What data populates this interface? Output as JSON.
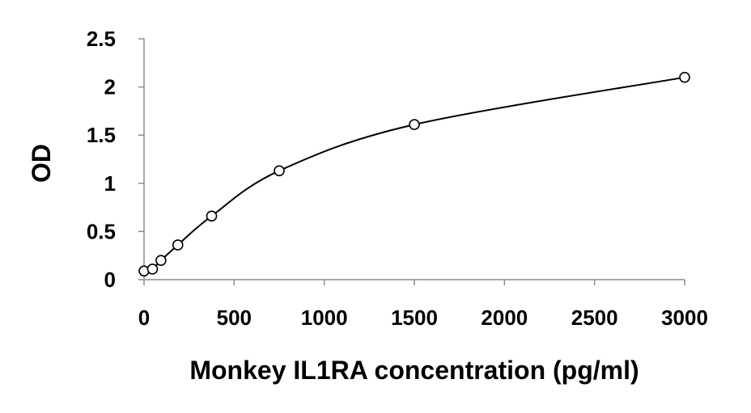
{
  "chart_data": {
    "type": "scatter",
    "title": "",
    "xlabel": "Monkey IL1RA concentration (pg/ml)",
    "ylabel": "OD",
    "xlim": [
      0,
      3000
    ],
    "ylim": [
      0,
      2.5
    ],
    "xticks": [
      0,
      500,
      1000,
      1500,
      2000,
      2500,
      3000
    ],
    "yticks": [
      0,
      0.5,
      1,
      1.5,
      2,
      2.5
    ],
    "xtick_labels": [
      "0",
      "500",
      "1000",
      "1500",
      "2000",
      "2500",
      "3000"
    ],
    "ytick_labels": [
      "0",
      "0.5",
      "1",
      "1.5",
      "2",
      "2.5"
    ],
    "grid": false,
    "legend": "none",
    "series": [
      {
        "x": [
          0,
          46.9,
          93.8,
          187.5,
          375,
          750,
          1500,
          3000
        ],
        "y": [
          0.09,
          0.11,
          0.2,
          0.36,
          0.66,
          1.13,
          1.61,
          2.1
        ],
        "marker": "open-circle",
        "trendline": "smooth-curve",
        "color": "#000000"
      }
    ]
  }
}
